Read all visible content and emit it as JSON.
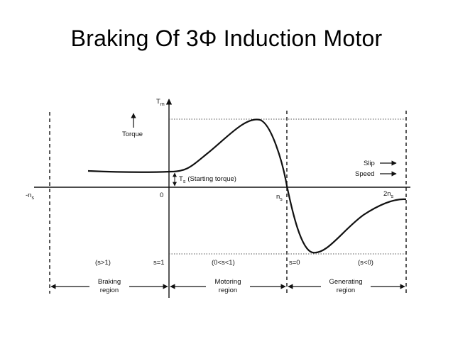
{
  "slide": {
    "title": "Braking Of 3Φ Induction Motor"
  },
  "diagram": {
    "y_axis_label_main": "T",
    "y_axis_label_sub": "m",
    "torque_label": "Torque",
    "starting_torque_main": "T",
    "starting_torque_sub": "s",
    "starting_torque_text": "(Starting torque)",
    "slip_label": "Slip",
    "speed_label": "Speed",
    "x_neg_ns_main": "-n",
    "x_neg_ns_sub": "s",
    "x_zero": "0",
    "x_ns_main": "n",
    "x_ns_sub": "s",
    "x_2ns_main": "2n",
    "x_2ns_sub": "s",
    "slip_s1": "s=1",
    "slip_s0": "s=0",
    "region_braking_cond": "(s>1)",
    "region_motoring_cond": "(0<s<1)",
    "region_generating_cond": "(s<0)",
    "region_braking_l1": "Braking",
    "region_braking_l2": "region",
    "region_motoring_l1": "Motoring",
    "region_motoring_l2": "region",
    "region_generating_l1": "Generating",
    "region_generating_l2": "region",
    "colors": {
      "ink": "#111111",
      "background": "#ffffff"
    }
  }
}
